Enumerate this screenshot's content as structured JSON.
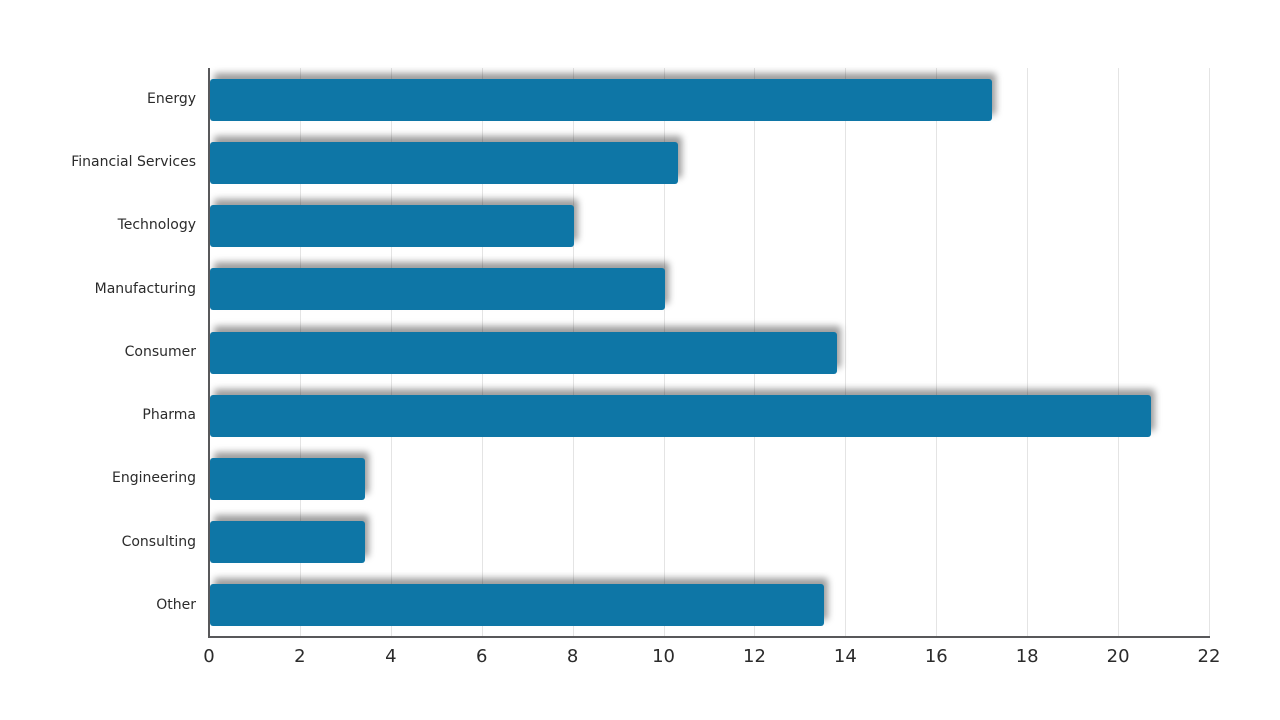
{
  "chart_data": {
    "type": "bar",
    "orientation": "horizontal",
    "title": "",
    "xlabel": "",
    "ylabel": "",
    "categories": [
      "Energy",
      "Financial Services",
      "Technology",
      "Manufacturing",
      "Consumer",
      "Pharma",
      "Engineering",
      "Consulting",
      "Other"
    ],
    "values": [
      17.2,
      10.3,
      8.0,
      10.0,
      13.8,
      20.7,
      3.4,
      3.4,
      13.5
    ],
    "xlim": [
      0,
      22
    ],
    "xticks": [
      0,
      2,
      4,
      6,
      8,
      10,
      12,
      14,
      16,
      18,
      20,
      22
    ],
    "grid": "vertical-only",
    "legend": "none",
    "colors": {
      "bar": "#0e76a6",
      "axis": "#58585a",
      "gridline": "#e4e4e4",
      "text": "#2b2b2b"
    }
  }
}
